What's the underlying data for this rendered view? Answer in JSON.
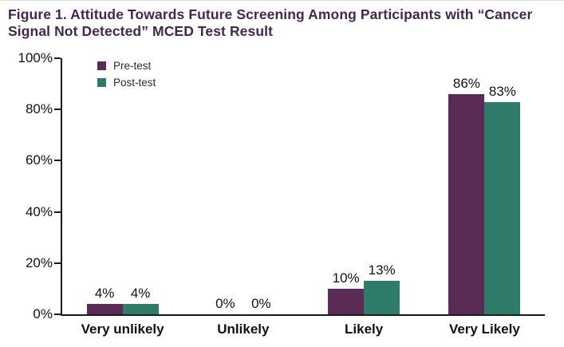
{
  "figure": {
    "title": "Figure 1. Attitude Towards Future Screening Among Participants with “Cancer Signal Not Detected” MCED Test Result"
  },
  "colors": {
    "title_text": "#432750",
    "pre_test_bar": "#5A2C55",
    "post_test_bar": "#2E7B69",
    "axis": "#1A1A1A",
    "label_text": "#111111"
  },
  "legend": {
    "items": [
      {
        "label": "Pre-test",
        "color": "#5A2C55"
      },
      {
        "label": "Post-test",
        "color": "#2E7B69"
      }
    ]
  },
  "chart_data": {
    "type": "bar",
    "title": "Figure 1. Attitude Towards Future Screening Among Participants with “Cancer Signal Not Detected” MCED Test Result",
    "categories": [
      "Very unlikely",
      "Unlikely",
      "Likely",
      "Very Likely"
    ],
    "series": [
      {
        "name": "Pre-test",
        "color": "#5A2C55",
        "values": [
          4,
          0,
          10,
          86
        ]
      },
      {
        "name": "Post-test",
        "color": "#2E7B69",
        "values": [
          4,
          0,
          13,
          83
        ]
      }
    ],
    "value_suffix": "%",
    "data_labels": true,
    "xlabel": "",
    "ylabel": "",
    "ylim": [
      0,
      100
    ],
    "yticks": [
      0,
      20,
      40,
      60,
      80,
      100
    ],
    "ytick_suffix": "%",
    "grid": false,
    "legend_position": "top-left"
  }
}
